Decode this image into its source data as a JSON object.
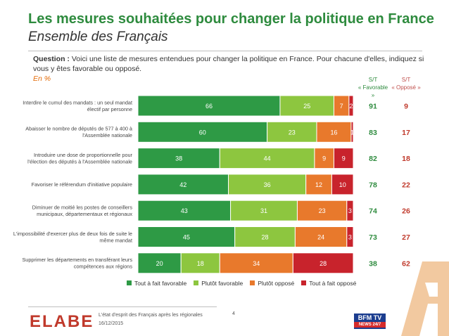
{
  "title": "Les mesures souhaitées pour changer la politique en France",
  "subtitle": "Ensemble des Français",
  "question_prefix": "Question :",
  "question_text": "Voici une liste de mesures entendues pour changer la politique en France. Pour chacune d'elles, indiquez si vous y êtes favorable ou opposé.",
  "unit_label": "En %",
  "header_favorable": [
    "S/T",
    "« Favorable »"
  ],
  "header_oppose": [
    "S/T",
    "« Opposé »"
  ],
  "footer": {
    "caption": "L'état d'esprit des Français après les régionales",
    "date": "16/12/2015",
    "page": "4",
    "logo_text": "ELABE",
    "bfm_text": "BFM TV",
    "bfm_sub": "NEWS 24/7"
  },
  "chart_data": {
    "type": "bar",
    "orientation": "horizontal",
    "stacked": true,
    "categories": [
      [
        "Interdire le cumul des mandats : un seul mandat",
        "électif par personne"
      ],
      [
        "Abaisser le nombre de députés de 577 à 400 à",
        "l'Assemblée nationale"
      ],
      [
        "Introduire une dose de proportionnelle pour",
        "l'élection des députés à l'Assemblée nationale"
      ],
      [
        "Favoriser le référendum d'initiative populaire"
      ],
      [
        "Diminuer de moitié les postes de conseillers",
        "municipaux, départementaux et régionaux"
      ],
      [
        "L'impossibilité d'exercer plus de deux fois de suite le",
        "même mandat"
      ],
      [
        "Supprimer les départements en transférant leurs",
        "compétences aux régions"
      ]
    ],
    "series": [
      {
        "name": "Tout à fait favorable",
        "color": "#2e9a45",
        "values": [
          66,
          60,
          38,
          42,
          43,
          45,
          20
        ]
      },
      {
        "name": "Plutôt favorable",
        "color": "#8dc63f",
        "values": [
          25,
          23,
          44,
          36,
          31,
          28,
          18
        ]
      },
      {
        "name": "Plutôt opposé",
        "color": "#e8792c",
        "values": [
          7,
          16,
          9,
          12,
          23,
          24,
          34
        ]
      },
      {
        "name": "Tout à fait opposé",
        "color": "#c8232c",
        "values": [
          2,
          1,
          9,
          10,
          3,
          3,
          28
        ]
      }
    ],
    "subtotal_favorable": [
      91,
      83,
      82,
      78,
      74,
      73,
      38
    ],
    "subtotal_oppose": [
      9,
      17,
      18,
      22,
      26,
      27,
      62
    ],
    "xlim": [
      0,
      100
    ],
    "legend_position": "bottom"
  }
}
